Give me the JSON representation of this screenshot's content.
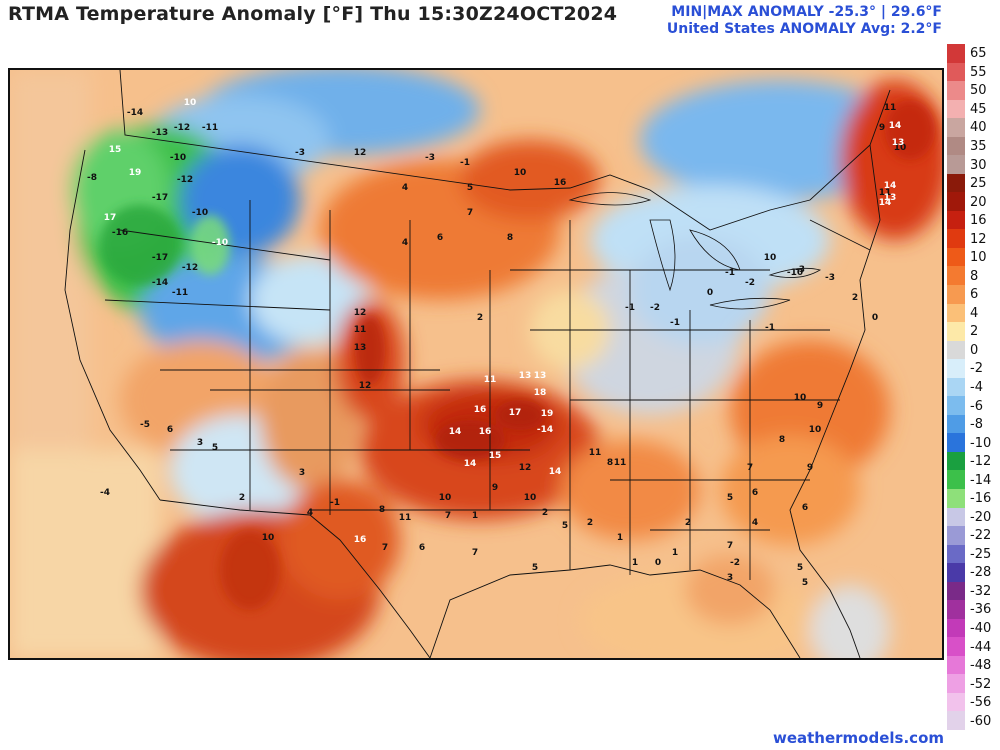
{
  "header": {
    "title": "RTMA Temperature Anomaly [°F]  Thu 15:30Z24OCT2024",
    "stats_line1": "MIN|MAX ANOMALY -25.3°  |  29.6°F",
    "stats_line2": "United States ANOMALY Avg: 2.2°F"
  },
  "legend": {
    "labels": [
      "65",
      "55",
      "50",
      "45",
      "40",
      "35",
      "30",
      "25",
      "20",
      "16",
      "12",
      "10",
      "8",
      "6",
      "4",
      "2",
      "0",
      "-2",
      "-4",
      "-6",
      "-8",
      "-10",
      "-12",
      "-14",
      "-16",
      "-20",
      "-22",
      "-25",
      "-28",
      "-32",
      "-36",
      "-40",
      "-44",
      "-48",
      "-52",
      "-56",
      "-60"
    ],
    "colors": [
      "#d23838",
      "#e05a5a",
      "#ec8a8a",
      "#f3b0b0",
      "#c9a6a0",
      "#b08a84",
      "#b89a96",
      "#8a1a0a",
      "#a0180a",
      "#c62010",
      "#e03a10",
      "#ee5a18",
      "#f47a30",
      "#f79a50",
      "#fbc078",
      "#fde9a8",
      "#d9d9d9",
      "#d8eefa",
      "#aad6f4",
      "#7cbcee",
      "#4f9ce6",
      "#2a74dc",
      "#1aa040",
      "#3cc04a",
      "#8ee07a",
      "#c8c8e6",
      "#9a9ad6",
      "#6a6ac6",
      "#4a3aa8",
      "#7a2a88",
      "#a0309e",
      "#c23ab8",
      "#d850c8",
      "#e678d8",
      "#eea0e4",
      "#f2c2ec",
      "#e2d2ea"
    ]
  },
  "map": {
    "anomaly_labels": [
      {
        "v": "10",
        "c": "w"
      },
      {
        "v": "-14",
        "c": "k"
      },
      {
        "v": "-13",
        "c": "k"
      },
      {
        "v": "-12",
        "c": "k"
      },
      {
        "v": "-11",
        "c": "k"
      },
      {
        "v": "15",
        "c": "w"
      },
      {
        "v": "-10",
        "c": "k"
      },
      {
        "v": "-8",
        "c": "k"
      },
      {
        "v": "19",
        "c": "w"
      },
      {
        "v": "-17",
        "c": "k"
      },
      {
        "v": "-12",
        "c": "k"
      },
      {
        "v": "-10",
        "c": "k"
      },
      {
        "v": "17",
        "c": "w"
      },
      {
        "v": "-16",
        "c": "k"
      },
      {
        "v": "-17",
        "c": "k"
      },
      {
        "v": "-12",
        "c": "k"
      },
      {
        "v": "-14",
        "c": "k"
      },
      {
        "v": "-11",
        "c": "k"
      },
      {
        "v": "-10",
        "c": "w"
      },
      {
        "v": "-3",
        "c": "k"
      },
      {
        "v": "12",
        "c": "k"
      },
      {
        "v": "-3",
        "c": "k"
      },
      {
        "v": "-1",
        "c": "k"
      },
      {
        "v": "10",
        "c": "k"
      },
      {
        "v": "16",
        "c": "k"
      },
      {
        "v": "11",
        "c": "k"
      },
      {
        "v": "9",
        "c": "k"
      },
      {
        "v": "10",
        "c": "k"
      },
      {
        "v": "5",
        "c": "k"
      },
      {
        "v": "4",
        "c": "k"
      },
      {
        "v": "7",
        "c": "k"
      },
      {
        "v": "6",
        "c": "k"
      },
      {
        "v": "8",
        "c": "k"
      },
      {
        "v": "4",
        "c": "k"
      },
      {
        "v": "2",
        "c": "k"
      },
      {
        "v": "12",
        "c": "k"
      },
      {
        "v": "11",
        "c": "k"
      },
      {
        "v": "13",
        "c": "k"
      },
      {
        "v": "12",
        "c": "k"
      },
      {
        "v": "11",
        "c": "w"
      },
      {
        "v": "13",
        "c": "w"
      },
      {
        "v": "13",
        "c": "w"
      },
      {
        "v": "18",
        "c": "w"
      },
      {
        "v": "16",
        "c": "w"
      },
      {
        "v": "17",
        "c": "w"
      },
      {
        "v": "19",
        "c": "w"
      },
      {
        "v": "14",
        "c": "w"
      },
      {
        "v": "16",
        "c": "w"
      },
      {
        "v": "-14",
        "c": "w"
      },
      {
        "v": "14",
        "c": "w"
      },
      {
        "v": "15",
        "c": "w"
      },
      {
        "v": "12",
        "c": "k"
      },
      {
        "v": "14",
        "c": "w"
      },
      {
        "v": "11",
        "c": "k"
      },
      {
        "v": "11",
        "c": "k"
      },
      {
        "v": "10",
        "c": "k"
      },
      {
        "v": "9",
        "c": "k"
      },
      {
        "v": "10",
        "c": "k"
      },
      {
        "v": "8",
        "c": "k"
      },
      {
        "v": "16",
        "c": "w"
      },
      {
        "v": "7",
        "c": "k"
      },
      {
        "v": "11",
        "c": "k"
      },
      {
        "v": "-1",
        "c": "k"
      },
      {
        "v": "-2",
        "c": "k"
      },
      {
        "v": "-1",
        "c": "k"
      },
      {
        "v": "0",
        "c": "k"
      },
      {
        "v": "-1",
        "c": "k"
      },
      {
        "v": "-2",
        "c": "k"
      },
      {
        "v": "-1",
        "c": "k"
      },
      {
        "v": "-3",
        "c": "k"
      },
      {
        "v": "-10",
        "c": "k"
      },
      {
        "v": "-3",
        "c": "k"
      },
      {
        "v": "2",
        "c": "k"
      },
      {
        "v": "0",
        "c": "k"
      },
      {
        "v": "11",
        "c": "k"
      },
      {
        "v": "14",
        "c": "w"
      },
      {
        "v": "13",
        "c": "w"
      },
      {
        "v": "14",
        "c": "w"
      },
      {
        "v": "14",
        "c": "w"
      },
      {
        "v": "13",
        "c": "w"
      },
      {
        "v": "10",
        "c": "k"
      },
      {
        "v": "10",
        "c": "k"
      },
      {
        "v": "9",
        "c": "k"
      },
      {
        "v": "10",
        "c": "k"
      },
      {
        "v": "8",
        "c": "k"
      },
      {
        "v": "7",
        "c": "k"
      },
      {
        "v": "9",
        "c": "k"
      },
      {
        "v": "6",
        "c": "k"
      },
      {
        "v": "5",
        "c": "k"
      },
      {
        "v": "4",
        "c": "k"
      },
      {
        "v": "6",
        "c": "k"
      },
      {
        "v": "7",
        "c": "k"
      },
      {
        "v": "5",
        "c": "k"
      },
      {
        "v": "5",
        "c": "k"
      },
      {
        "v": "3",
        "c": "k"
      },
      {
        "v": "2",
        "c": "k"
      },
      {
        "v": "1",
        "c": "k"
      },
      {
        "v": "0",
        "c": "k"
      },
      {
        "v": "-2",
        "c": "k"
      },
      {
        "v": "1",
        "c": "k"
      },
      {
        "v": "-5",
        "c": "k"
      },
      {
        "v": "-4",
        "c": "k"
      },
      {
        "v": "6",
        "c": "k"
      },
      {
        "v": "3",
        "c": "k"
      },
      {
        "v": "5",
        "c": "k"
      },
      {
        "v": "10",
        "c": "k"
      },
      {
        "v": "3",
        "c": "k"
      },
      {
        "v": "-1",
        "c": "k"
      },
      {
        "v": "4",
        "c": "k"
      },
      {
        "v": "2",
        "c": "k"
      },
      {
        "v": "7",
        "c": "k"
      },
      {
        "v": "1",
        "c": "k"
      },
      {
        "v": "5",
        "c": "k"
      },
      {
        "v": "8",
        "c": "k"
      },
      {
        "v": "6",
        "c": "k"
      },
      {
        "v": "7",
        "c": "k"
      },
      {
        "v": "5",
        "c": "k"
      },
      {
        "v": "2",
        "c": "k"
      },
      {
        "v": "1",
        "c": "k"
      },
      {
        "v": "2",
        "c": "k"
      }
    ]
  },
  "credit": "weathermodels.com"
}
